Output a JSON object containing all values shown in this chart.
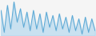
{
  "values": [
    7.5,
    6.2,
    7.8,
    6.4,
    8.0,
    6.8,
    7.6,
    6.5,
    7.4,
    6.3,
    7.5,
    6.4,
    7.3,
    6.2,
    7.4,
    6.5,
    7.2,
    6.3,
    7.3,
    6.4,
    7.1,
    6.2,
    7.2,
    6.3,
    7.0,
    6.1,
    7.1,
    6.2,
    7.0,
    6.3
  ],
  "line_color": "#5ba8d4",
  "fill_color": "#add5ee",
  "background_color": "#f5f5f5",
  "linewidth": 0.7
}
